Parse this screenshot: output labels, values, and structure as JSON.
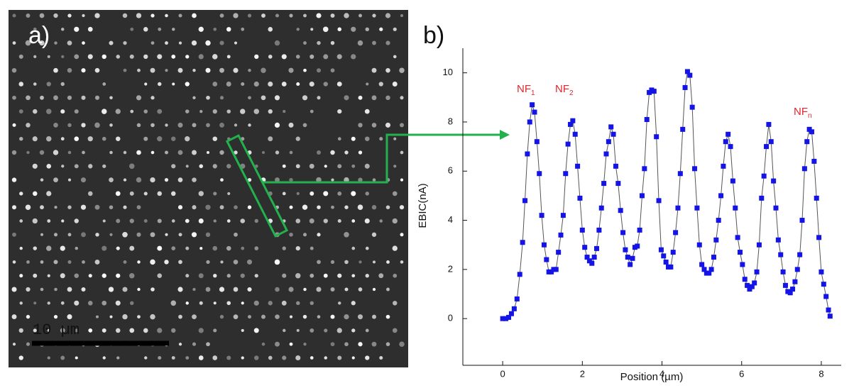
{
  "panel_a": {
    "label": "a)",
    "scale_bar": "10 µm"
  },
  "chart_data": {
    "type": "scatter",
    "panel_label": "b)",
    "xlabel": "Position (µm)",
    "ylabel": "EBIC(nA)",
    "annotations": [
      {
        "text": "NF",
        "subscript": "1"
      },
      {
        "text": "NF",
        "subscript": "2"
      },
      {
        "text": "NF",
        "subscript": "n"
      }
    ],
    "color": "#1414e6",
    "line_color": "#555555",
    "xlim": [
      -1,
      8.5
    ],
    "xticks": [
      0,
      2,
      4,
      6,
      8
    ],
    "ylim": [
      -1.9,
      11
    ],
    "yticks": [
      0,
      2,
      4,
      6,
      8,
      10
    ],
    "x": [
      0.0,
      0.08,
      0.15,
      0.22,
      0.29,
      0.36,
      0.43,
      0.5,
      0.56,
      0.62,
      0.68,
      0.74,
      0.8,
      0.86,
      0.92,
      0.98,
      1.04,
      1.1,
      1.16,
      1.22,
      1.28,
      1.34,
      1.4,
      1.46,
      1.52,
      1.58,
      1.64,
      1.7,
      1.76,
      1.82,
      1.88,
      1.94,
      2.0,
      2.06,
      2.12,
      2.18,
      2.24,
      2.3,
      2.36,
      2.42,
      2.48,
      2.54,
      2.6,
      2.66,
      2.72,
      2.78,
      2.84,
      2.9,
      2.96,
      3.02,
      3.08,
      3.14,
      3.2,
      3.26,
      3.32,
      3.38,
      3.44,
      3.5,
      3.56,
      3.62,
      3.68,
      3.74,
      3.8,
      3.86,
      3.92,
      3.98,
      4.04,
      4.1,
      4.16,
      4.22,
      4.28,
      4.34,
      4.4,
      4.46,
      4.52,
      4.58,
      4.64,
      4.7,
      4.76,
      4.82,
      4.88,
      4.94,
      5.0,
      5.06,
      5.12,
      5.18,
      5.24,
      5.3,
      5.36,
      5.42,
      5.48,
      5.54,
      5.6,
      5.66,
      5.72,
      5.78,
      5.84,
      5.9,
      5.96,
      6.02,
      6.08,
      6.14,
      6.2,
      6.26,
      6.32,
      6.38,
      6.44,
      6.5,
      6.56,
      6.62,
      6.68,
      6.74,
      6.8,
      6.86,
      6.92,
      6.98,
      7.04,
      7.1,
      7.16,
      7.22,
      7.28,
      7.34,
      7.4,
      7.46,
      7.52,
      7.58,
      7.64,
      7.7,
      7.76,
      7.82,
      7.88,
      7.94,
      8.0,
      8.06,
      8.12,
      8.18,
      8.22
    ],
    "values": [
      0.0,
      0.0,
      0.05,
      0.2,
      0.4,
      0.8,
      1.8,
      3.1,
      4.8,
      6.7,
      8.0,
      8.7,
      8.4,
      7.2,
      5.9,
      4.2,
      3.0,
      2.4,
      1.9,
      1.9,
      2.0,
      2.0,
      2.7,
      3.4,
      4.2,
      5.9,
      7.1,
      7.9,
      8.05,
      7.5,
      6.2,
      4.9,
      3.6,
      2.9,
      2.5,
      2.35,
      2.25,
      2.5,
      2.85,
      3.6,
      4.5,
      5.5,
      6.7,
      7.2,
      7.8,
      7.5,
      6.2,
      5.5,
      4.4,
      3.5,
      2.8,
      2.5,
      2.2,
      2.45,
      2.9,
      2.95,
      3.6,
      5.0,
      6.1,
      8.1,
      9.2,
      9.3,
      9.25,
      7.4,
      4.8,
      2.8,
      2.55,
      2.3,
      2.1,
      2.1,
      2.7,
      3.5,
      4.5,
      5.9,
      7.7,
      9.4,
      10.05,
      9.9,
      8.6,
      6.1,
      4.5,
      3.0,
      2.2,
      2.0,
      1.85,
      1.85,
      2.0,
      2.5,
      3.2,
      4.0,
      5.0,
      6.2,
      7.2,
      7.5,
      7.0,
      5.6,
      4.5,
      3.3,
      2.7,
      2.2,
      1.6,
      1.35,
      1.2,
      1.3,
      1.45,
      1.9,
      3.0,
      4.9,
      5.8,
      7.0,
      7.9,
      7.2,
      5.6,
      4.5,
      3.2,
      2.6,
      1.9,
      1.35,
      1.1,
      1.05,
      1.2,
      1.5,
      2.0,
      2.6,
      4.0,
      6.1,
      7.2,
      7.7,
      7.6,
      6.4,
      4.9,
      3.3,
      1.9,
      1.4,
      0.9,
      0.35,
      0.1
    ]
  }
}
